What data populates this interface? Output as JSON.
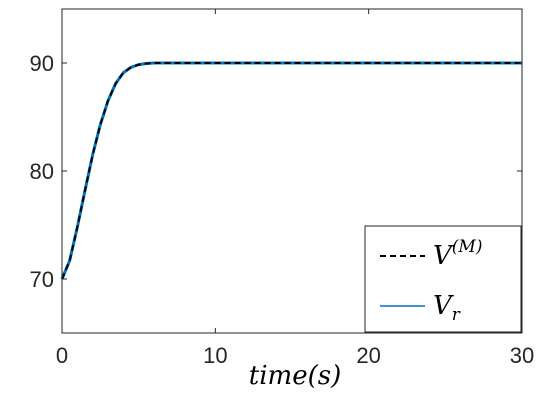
{
  "chart_data": {
    "type": "line",
    "title": "",
    "xlabel": "time(s)",
    "ylabel": "",
    "xlim": [
      0,
      30
    ],
    "ylim": [
      65,
      95
    ],
    "xticks": [
      0,
      10,
      20,
      30
    ],
    "yticks": [
      70,
      80,
      90
    ],
    "grid": false,
    "legend_position": "bottom-right",
    "legend": {
      "v_m": {
        "base": "V",
        "sup": "(M)"
      },
      "v_r": {
        "base": "V",
        "sub": "r"
      }
    },
    "series": [
      {
        "name": "V^(M)",
        "color": "#000000",
        "style": "dashed",
        "x": [
          0,
          0.5,
          1,
          1.5,
          2,
          2.5,
          3,
          3.5,
          4,
          4.5,
          5,
          5.5,
          6,
          7,
          8,
          10,
          15,
          20,
          25,
          30
        ],
        "y": [
          70,
          71.7,
          74.8,
          78.2,
          81.5,
          84.3,
          86.5,
          88.1,
          89.1,
          89.6,
          89.85,
          89.95,
          90,
          90,
          90,
          90,
          90,
          90,
          90,
          90
        ]
      },
      {
        "name": "V_r",
        "color": "#0072BD",
        "style": "solid",
        "x": [
          0,
          0.5,
          1,
          1.5,
          2,
          2.5,
          3,
          3.5,
          4,
          4.5,
          5,
          5.5,
          6,
          7,
          8,
          10,
          15,
          20,
          25,
          30
        ],
        "y": [
          70,
          71.7,
          74.8,
          78.2,
          81.5,
          84.3,
          86.5,
          88.1,
          89.1,
          89.6,
          89.85,
          89.95,
          90,
          90,
          90,
          90,
          90,
          90,
          90,
          90
        ]
      }
    ]
  }
}
